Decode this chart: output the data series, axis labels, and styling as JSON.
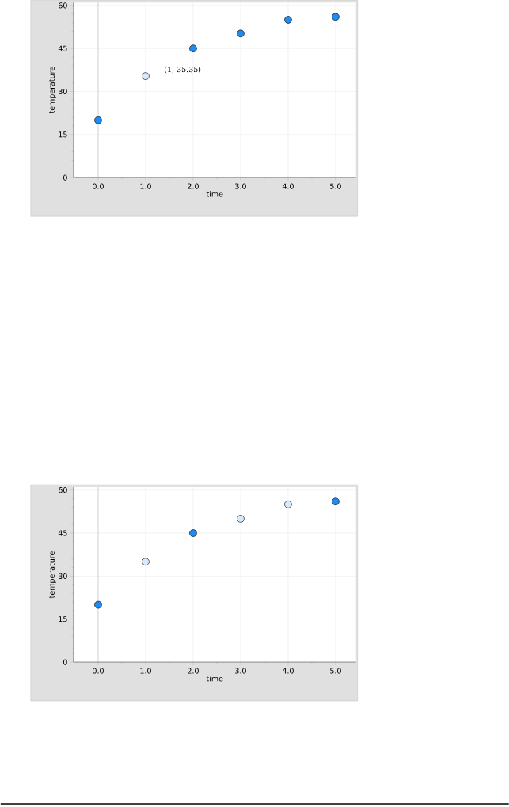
{
  "chart_data": [
    {
      "type": "scatter",
      "xlabel": "time",
      "ylabel": "temperature",
      "x": [
        0,
        1,
        2,
        3,
        4,
        5
      ],
      "values": [
        20,
        35.35,
        45,
        50.2,
        55,
        56
      ],
      "colors": [
        "#1e8cf0",
        "#d6eafb",
        "#1e8cf0",
        "#1e8cf0",
        "#1e8cf0",
        "#1e8cf0"
      ],
      "xlim": [
        -0.52,
        5.43
      ],
      "ylim": [
        0,
        61
      ],
      "xticks": [
        {
          "value": 0,
          "label": "0.0"
        },
        {
          "value": 1,
          "label": "1.0"
        },
        {
          "value": 2,
          "label": "2.0"
        },
        {
          "value": 3,
          "label": "3.0"
        },
        {
          "value": 4,
          "label": "4.0"
        },
        {
          "value": 5,
          "label": "5.0"
        }
      ],
      "yticks": [
        0,
        15,
        30,
        45,
        60
      ],
      "grid": true,
      "marker": "circle",
      "ref_lines": [
        {
          "axis": "x",
          "value": 0,
          "color": "#a0a0a0"
        }
      ],
      "annotations": [
        {
          "text": "(1, 35.35)",
          "x": 1,
          "y": 35.35
        }
      ]
    },
    {
      "type": "scatter",
      "xlabel": "time",
      "ylabel": "temperature",
      "x": [
        0,
        1,
        2,
        3,
        4,
        5
      ],
      "values": [
        20,
        35,
        45,
        50,
        55,
        56
      ],
      "colors": [
        "#1e8cf0",
        "#d6eafb",
        "#1e8cf0",
        "#d6eafb",
        "#d6eafb",
        "#1e8cf0"
      ],
      "marker": "circle",
      "xlim": [
        -0.52,
        5.43
      ],
      "ylim": [
        0,
        61
      ],
      "xticks": [
        {
          "value": 0,
          "label": "0.0"
        },
        {
          "value": 1,
          "label": "1.0"
        },
        {
          "value": 2,
          "label": "2.0"
        },
        {
          "value": 3,
          "label": "3.0"
        },
        {
          "value": 4,
          "label": "4.0"
        },
        {
          "value": 5,
          "label": "5.0"
        }
      ],
      "yticks": [
        0,
        15,
        30,
        45,
        60
      ],
      "grid": true,
      "ref_lines": [
        {
          "axis": "x",
          "value": 0,
          "color": "#a0a0a0"
        }
      ]
    }
  ]
}
